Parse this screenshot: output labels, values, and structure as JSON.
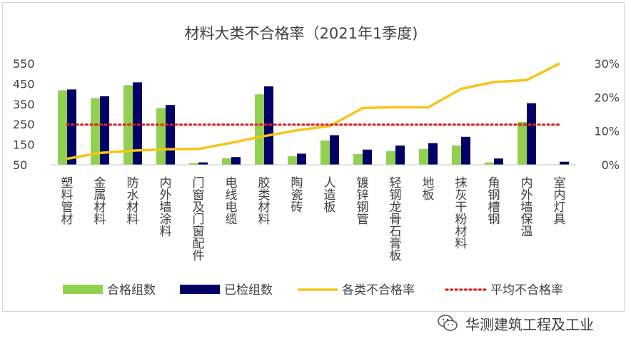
{
  "chart_data": {
    "type": "bar",
    "title": "材料大类不合格率（2021年1季度)",
    "categories": [
      "塑料管材",
      "金属材料",
      "防水材料",
      "内外墙涂料",
      "门窗及门窗配件",
      "电线电缆",
      "胶类材料",
      "陶瓷砖",
      "人造板",
      "镀锌钢管",
      "轻钢龙骨石膏板",
      "地板",
      "抹灰干粉材料",
      "角钢槽钢",
      "内外墙保温",
      "室内灯具"
    ],
    "series": [
      {
        "name": "合格组数",
        "kind": "bar",
        "axis": "left",
        "color": "#92d050",
        "values": [
          418,
          378,
          443,
          330,
          58,
          82,
          398,
          92,
          170,
          103,
          118,
          128,
          145,
          62,
          262,
          52
        ]
      },
      {
        "name": "已检组数",
        "kind": "bar",
        "axis": "left",
        "color": "#000066",
        "values": [
          422,
          388,
          457,
          345,
          62,
          88,
          437,
          105,
          196,
          125,
          145,
          157,
          188,
          81,
          354,
          65
        ]
      },
      {
        "name": "各类不合格率",
        "kind": "line",
        "axis": "right",
        "color": "#f5c518",
        "values": [
          1.8,
          3.5,
          4.2,
          4.6,
          4.7,
          6.5,
          8.5,
          10.2,
          11.5,
          16.8,
          17.1,
          17.0,
          22.5,
          24.5,
          25.1,
          30.0
        ]
      },
      {
        "name": "平均不合格率",
        "kind": "line",
        "axis": "right",
        "color": "#e02020",
        "dashed": true,
        "values": [
          11.9,
          11.9,
          11.9,
          11.9,
          11.9,
          11.9,
          11.9,
          11.9,
          11.9,
          11.9,
          11.9,
          11.9,
          11.9,
          11.9,
          11.9,
          11.9
        ]
      }
    ],
    "y_left": {
      "ticks": [
        "550",
        "450",
        "350",
        "250",
        "150",
        "50"
      ],
      "min": 50,
      "max": 550
    },
    "y_right": {
      "ticks": [
        "30%",
        "20%",
        "10%",
        "0%"
      ],
      "min": 0,
      "max": 30
    },
    "grid": false,
    "legend_position": "bottom"
  },
  "watermark": {
    "text": "华测建筑工程及工业",
    "icon": "wechat-icon"
  }
}
